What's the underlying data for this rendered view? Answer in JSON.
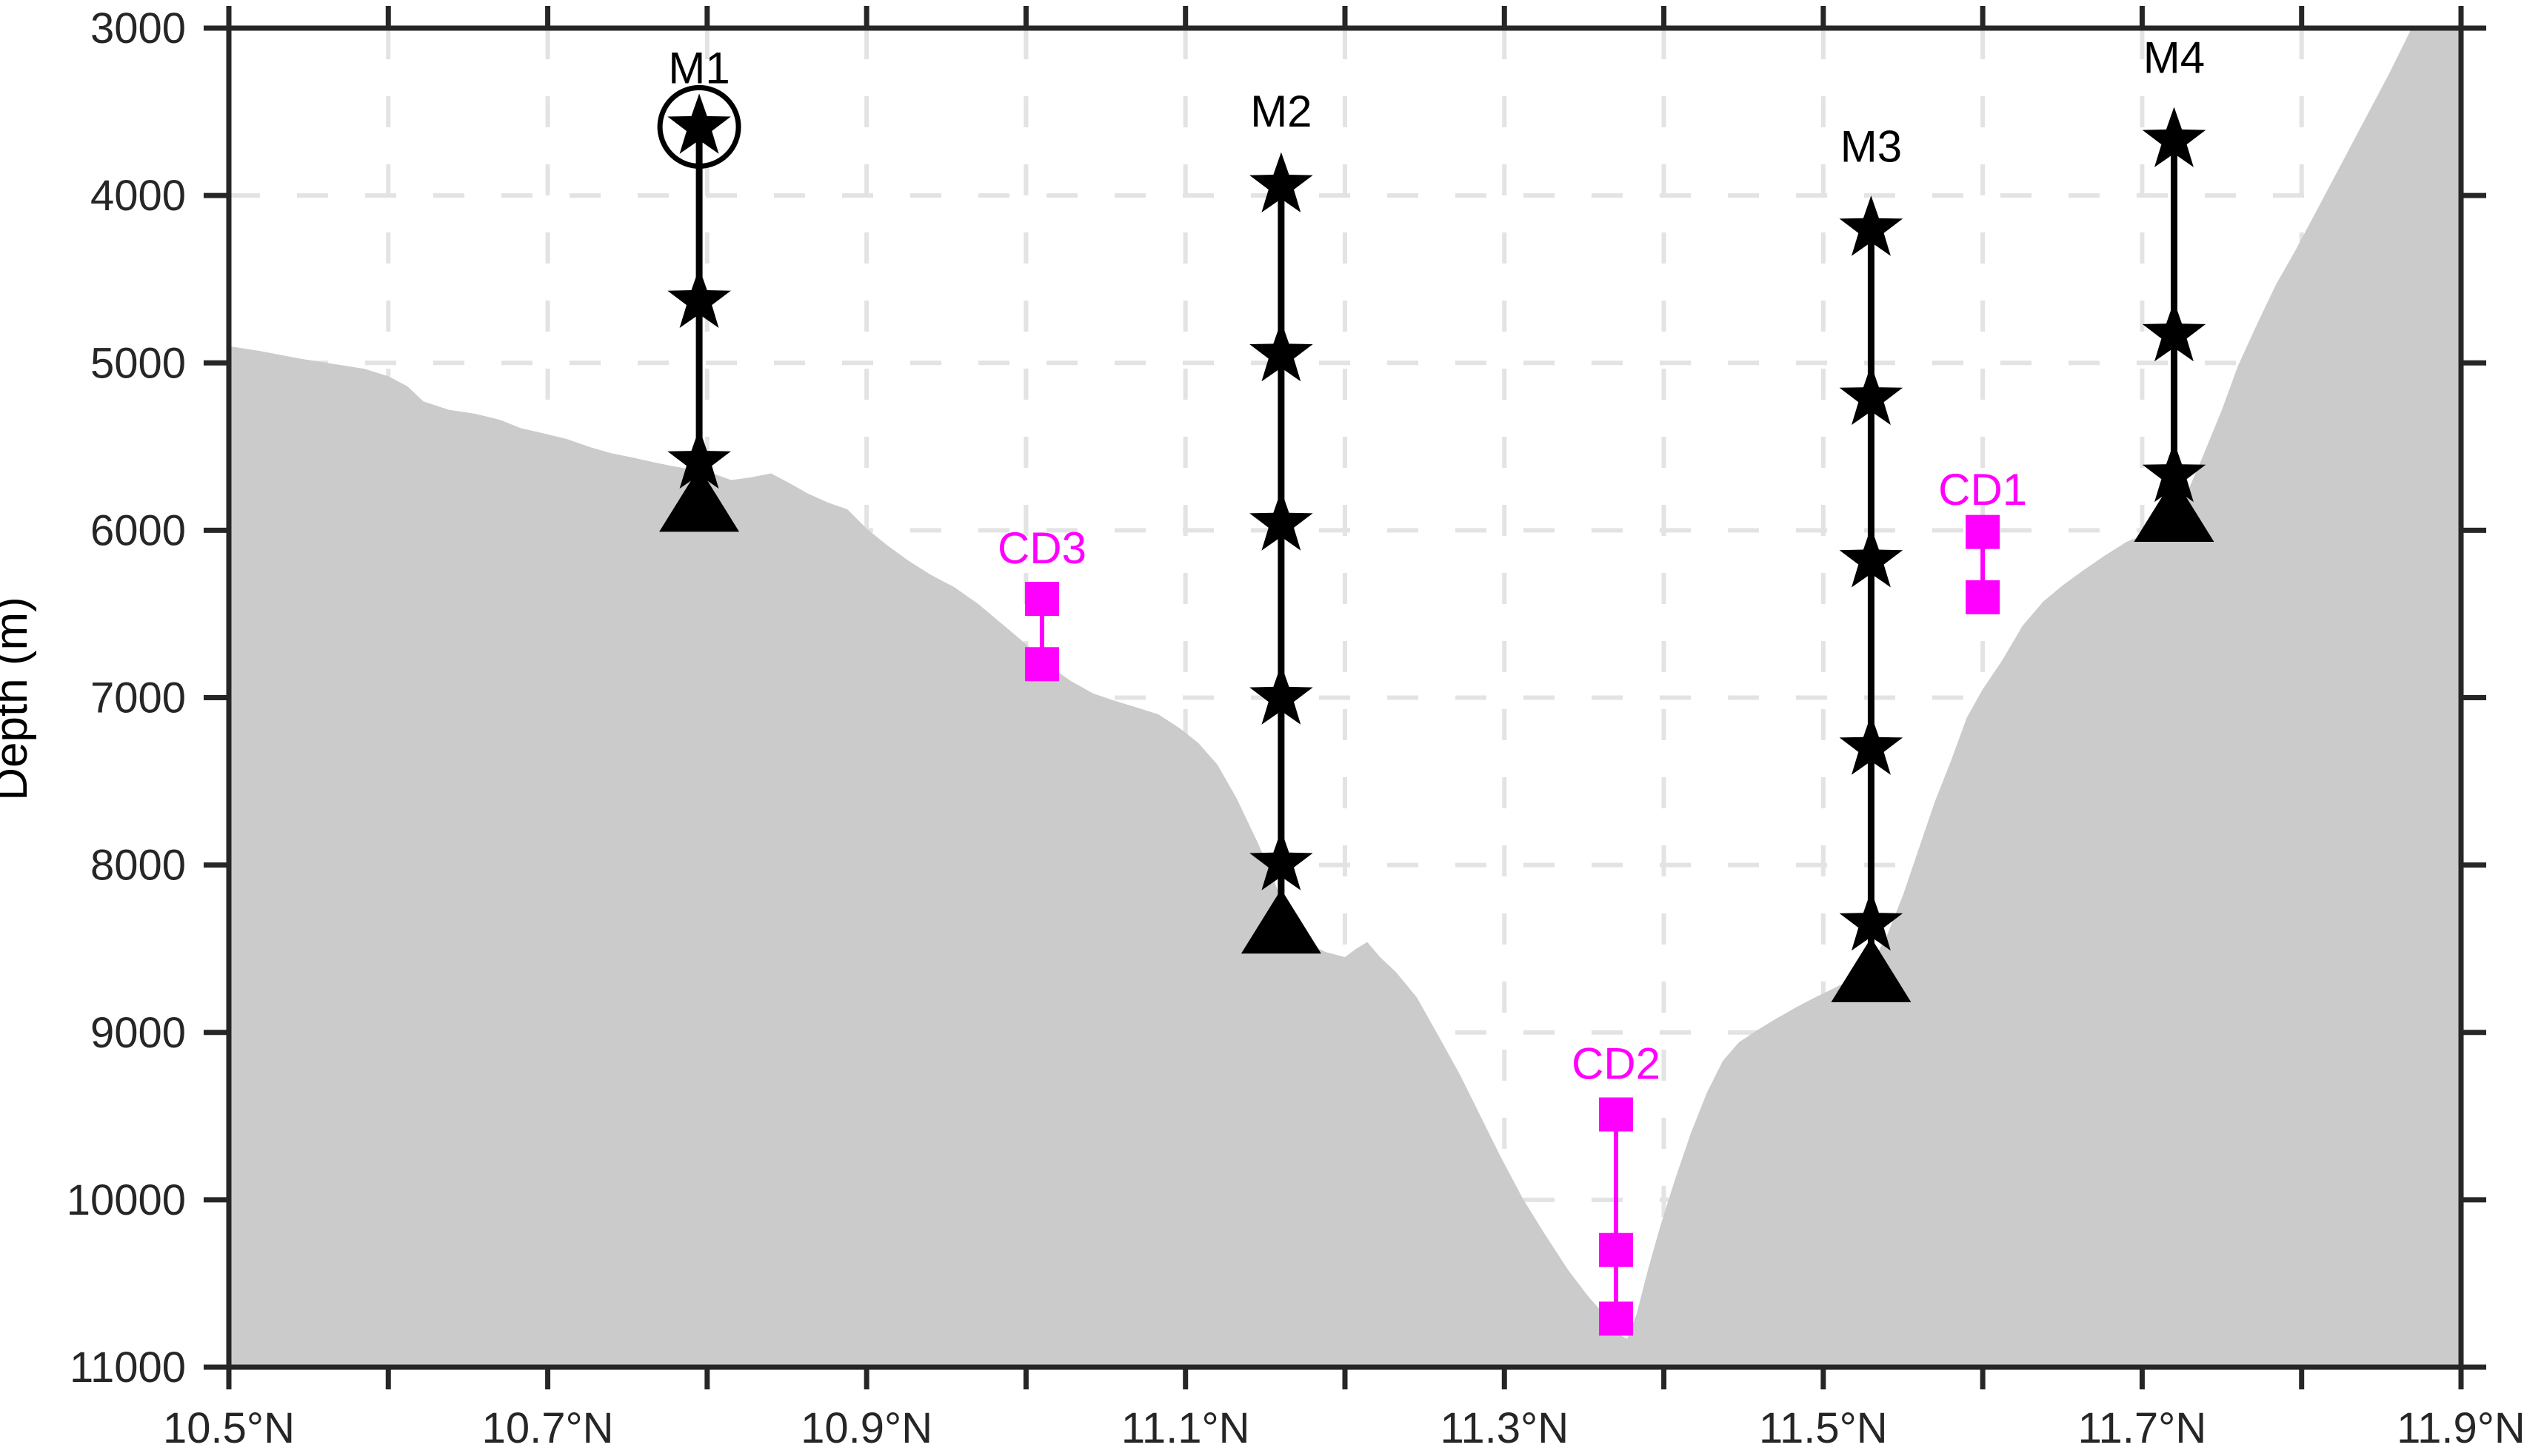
{
  "chart_data": {
    "type": "area",
    "title": "",
    "xlabel": "",
    "ylabel": "Depth (m)",
    "x_range_deg_n": [
      10.5,
      11.9
    ],
    "depth_range_m": [
      3000,
      11000
    ],
    "y_axis_inverted": true,
    "grid": {
      "style": "dashed",
      "x_every_deg": 0.1,
      "y_every_m": 1000,
      "shown_over_seafloor": false
    },
    "x_ticks": [
      10.5,
      10.6,
      10.7,
      10.8,
      10.9,
      11.0,
      11.1,
      11.2,
      11.3,
      11.4,
      11.5,
      11.6,
      11.7,
      11.8,
      11.9
    ],
    "x_tick_labels": [
      {
        "value": 10.5,
        "label": "10.5°N"
      },
      {
        "value": 10.7,
        "label": "10.7°N"
      },
      {
        "value": 10.9,
        "label": "10.9°N"
      },
      {
        "value": 11.1,
        "label": "11.1°N"
      },
      {
        "value": 11.3,
        "label": "11.3°N"
      },
      {
        "value": 11.5,
        "label": "11.5°N"
      },
      {
        "value": 11.7,
        "label": "11.7°N"
      },
      {
        "value": 11.9,
        "label": "11.9°N"
      }
    ],
    "y_ticks": [
      3000,
      4000,
      5000,
      6000,
      7000,
      8000,
      9000,
      10000,
      11000
    ],
    "y_tick_labels": [
      "3000",
      "4000",
      "5000",
      "6000",
      "7000",
      "8000",
      "9000",
      "10000",
      "11000"
    ],
    "moorings": [
      {
        "name": "M1",
        "lat": 10.795,
        "label_depth_m": 3240,
        "instruments": [
          {
            "marker": "circled-star",
            "depth_m": 3590
          },
          {
            "marker": "star",
            "depth_m": 4630
          },
          {
            "marker": "star",
            "depth_m": 5590
          }
        ],
        "anchor_depth_m": 5810
      },
      {
        "name": "M2",
        "lat": 11.16,
        "label_depth_m": 3500,
        "instruments": [
          {
            "marker": "star",
            "depth_m": 3940
          },
          {
            "marker": "star",
            "depth_m": 4950
          },
          {
            "marker": "star",
            "depth_m": 5960
          },
          {
            "marker": "star",
            "depth_m": 7000
          },
          {
            "marker": "star",
            "depth_m": 7990
          }
        ],
        "anchor_depth_m": 8330
      },
      {
        "name": "M3",
        "lat": 11.53,
        "label_depth_m": 3710,
        "instruments": [
          {
            "marker": "star",
            "depth_m": 4200
          },
          {
            "marker": "star",
            "depth_m": 5210
          },
          {
            "marker": "star",
            "depth_m": 6180
          },
          {
            "marker": "star",
            "depth_m": 7300
          },
          {
            "marker": "star",
            "depth_m": 8350
          }
        ],
        "anchor_depth_m": 8620
      },
      {
        "name": "M4",
        "lat": 11.72,
        "label_depth_m": 3180,
        "instruments": [
          {
            "marker": "star",
            "depth_m": 3670
          },
          {
            "marker": "star",
            "depth_m": 4830
          },
          {
            "marker": "star",
            "depth_m": 5670
          }
        ],
        "anchor_depth_m": 5870
      }
    ],
    "cd_stations": [
      {
        "name": "CD1",
        "lat": 11.6,
        "label_depth_m": 5760,
        "squares_depth_m": [
          6010,
          6400
        ]
      },
      {
        "name": "CD2",
        "lat": 11.37,
        "label_depth_m": 9190,
        "squares_depth_m": [
          9490,
          10300,
          10710
        ]
      },
      {
        "name": "CD3",
        "lat": 11.01,
        "label_depth_m": 6110,
        "squares_depth_m": [
          6410,
          6800
        ]
      }
    ],
    "bathymetry_profile": [
      [
        10.5,
        4900
      ],
      [
        10.52,
        4930
      ],
      [
        10.545,
        4975
      ],
      [
        10.565,
        5005
      ],
      [
        10.585,
        5035
      ],
      [
        10.6,
        5080
      ],
      [
        10.612,
        5140
      ],
      [
        10.622,
        5230
      ],
      [
        10.638,
        5280
      ],
      [
        10.655,
        5305
      ],
      [
        10.67,
        5340
      ],
      [
        10.683,
        5390
      ],
      [
        10.697,
        5420
      ],
      [
        10.712,
        5455
      ],
      [
        10.727,
        5505
      ],
      [
        10.74,
        5540
      ],
      [
        10.753,
        5565
      ],
      [
        10.767,
        5595
      ],
      [
        10.78,
        5620
      ],
      [
        10.793,
        5640
      ],
      [
        10.805,
        5665
      ],
      [
        10.815,
        5700
      ],
      [
        10.827,
        5685
      ],
      [
        10.84,
        5660
      ],
      [
        10.852,
        5720
      ],
      [
        10.863,
        5780
      ],
      [
        10.876,
        5835
      ],
      [
        10.888,
        5875
      ],
      [
        10.9,
        5990
      ],
      [
        10.913,
        6090
      ],
      [
        10.926,
        6180
      ],
      [
        10.94,
        6265
      ],
      [
        10.955,
        6340
      ],
      [
        10.97,
        6440
      ],
      [
        10.985,
        6560
      ],
      [
        11.0,
        6680
      ],
      [
        11.013,
        6800
      ],
      [
        11.028,
        6900
      ],
      [
        11.042,
        6975
      ],
      [
        11.056,
        7020
      ],
      [
        11.07,
        7060
      ],
      [
        11.083,
        7100
      ],
      [
        11.096,
        7180
      ],
      [
        11.108,
        7270
      ],
      [
        11.12,
        7400
      ],
      [
        11.132,
        7600
      ],
      [
        11.145,
        7860
      ],
      [
        11.155,
        8080
      ],
      [
        11.165,
        8330
      ],
      [
        11.175,
        8460
      ],
      [
        11.188,
        8520
      ],
      [
        11.2,
        8550
      ],
      [
        11.207,
        8500
      ],
      [
        11.214,
        8460
      ],
      [
        11.222,
        8550
      ],
      [
        11.232,
        8640
      ],
      [
        11.245,
        8790
      ],
      [
        11.258,
        9010
      ],
      [
        11.272,
        9250
      ],
      [
        11.285,
        9500
      ],
      [
        11.298,
        9750
      ],
      [
        11.312,
        10000
      ],
      [
        11.325,
        10200
      ],
      [
        11.34,
        10420
      ],
      [
        11.352,
        10570
      ],
      [
        11.363,
        10690
      ],
      [
        11.371,
        10800
      ],
      [
        11.377,
        10830
      ],
      [
        11.383,
        10680
      ],
      [
        11.39,
        10420
      ],
      [
        11.398,
        10150
      ],
      [
        11.407,
        9880
      ],
      [
        11.417,
        9600
      ],
      [
        11.427,
        9360
      ],
      [
        11.437,
        9170
      ],
      [
        11.447,
        9060
      ],
      [
        11.458,
        8990
      ],
      [
        11.47,
        8920
      ],
      [
        11.483,
        8850
      ],
      [
        11.495,
        8790
      ],
      [
        11.508,
        8730
      ],
      [
        11.52,
        8670
      ],
      [
        11.53,
        8595
      ],
      [
        11.54,
        8420
      ],
      [
        11.55,
        8180
      ],
      [
        11.56,
        7900
      ],
      [
        11.57,
        7620
      ],
      [
        11.58,
        7380
      ],
      [
        11.59,
        7120
      ],
      [
        11.6,
        6950
      ],
      [
        11.612,
        6780
      ],
      [
        11.625,
        6570
      ],
      [
        11.638,
        6425
      ],
      [
        11.65,
        6330
      ],
      [
        11.663,
        6240
      ],
      [
        11.676,
        6155
      ],
      [
        11.69,
        6070
      ],
      [
        11.705,
        6010
      ],
      [
        11.718,
        5960
      ],
      [
        11.728,
        5780
      ],
      [
        11.738,
        5560
      ],
      [
        11.75,
        5280
      ],
      [
        11.76,
        5020
      ],
      [
        11.772,
        4770
      ],
      [
        11.784,
        4530
      ],
      [
        11.796,
        4330
      ],
      [
        11.81,
        4080
      ],
      [
        11.825,
        3810
      ],
      [
        11.84,
        3540
      ],
      [
        11.855,
        3270
      ],
      [
        11.869,
        3000
      ],
      [
        11.88,
        2950
      ],
      [
        11.9,
        2900
      ]
    ],
    "colors": {
      "mooring": "#000000",
      "cd": "#FF00FF",
      "seafloor_fill": "#CBCBCB",
      "gridline": "#E3E3E3",
      "axis": "#262626",
      "tick_label": "#262626",
      "background": "#FFFFFF"
    }
  }
}
